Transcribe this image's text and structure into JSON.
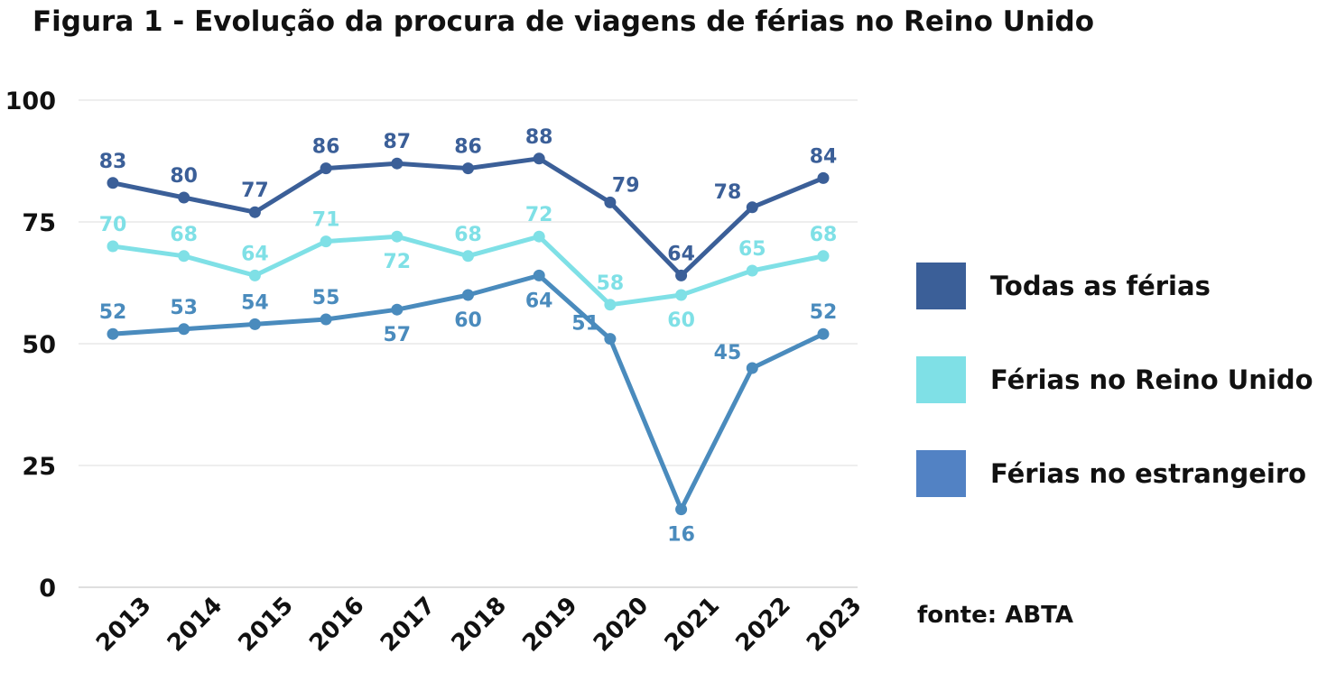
{
  "chart_data": {
    "type": "line",
    "title": "Figura 1 - Evolução da procura de viagens de férias no Reino Unido",
    "categories": [
      "2013",
      "2014",
      "2015",
      "2016",
      "2017",
      "2018",
      "2019",
      "2020",
      "2021",
      "2022",
      "2023"
    ],
    "ylim": [
      0,
      100
    ],
    "yticks": [
      "0",
      "25",
      "50",
      "75",
      "100"
    ],
    "grid": true,
    "legend_position": "right",
    "series": [
      {
        "name": "Todas as férias",
        "color": "#3b5f98",
        "values": [
          83,
          80,
          77,
          86,
          87,
          86,
          88,
          79,
          64,
          78,
          84
        ],
        "label_pos": [
          "above",
          "above",
          "above",
          "above",
          "above",
          "above",
          "above",
          "right",
          "above",
          "left",
          "above"
        ]
      },
      {
        "name": "Férias no Reino Unido",
        "color": "#7fe0e6",
        "values": [
          70,
          68,
          64,
          71,
          72,
          68,
          72,
          58,
          60,
          65,
          68
        ],
        "label_pos": [
          "above",
          "above",
          "above",
          "above",
          "below",
          "above",
          "above",
          "above",
          "below",
          "above",
          "above"
        ]
      },
      {
        "name": "Férias no estrangeiro",
        "color": "#4a8bbd",
        "values": [
          52,
          53,
          54,
          55,
          57,
          60,
          64,
          51,
          16,
          45,
          52
        ],
        "label_pos": [
          "above",
          "above",
          "above",
          "above",
          "below",
          "below",
          "below",
          "left",
          "below",
          "left",
          "above"
        ]
      }
    ],
    "legend_swatch_colors": [
      "#3b5f98",
      "#7fe0e6",
      "#5282c4"
    ],
    "source": "fonte: ABTA"
  }
}
